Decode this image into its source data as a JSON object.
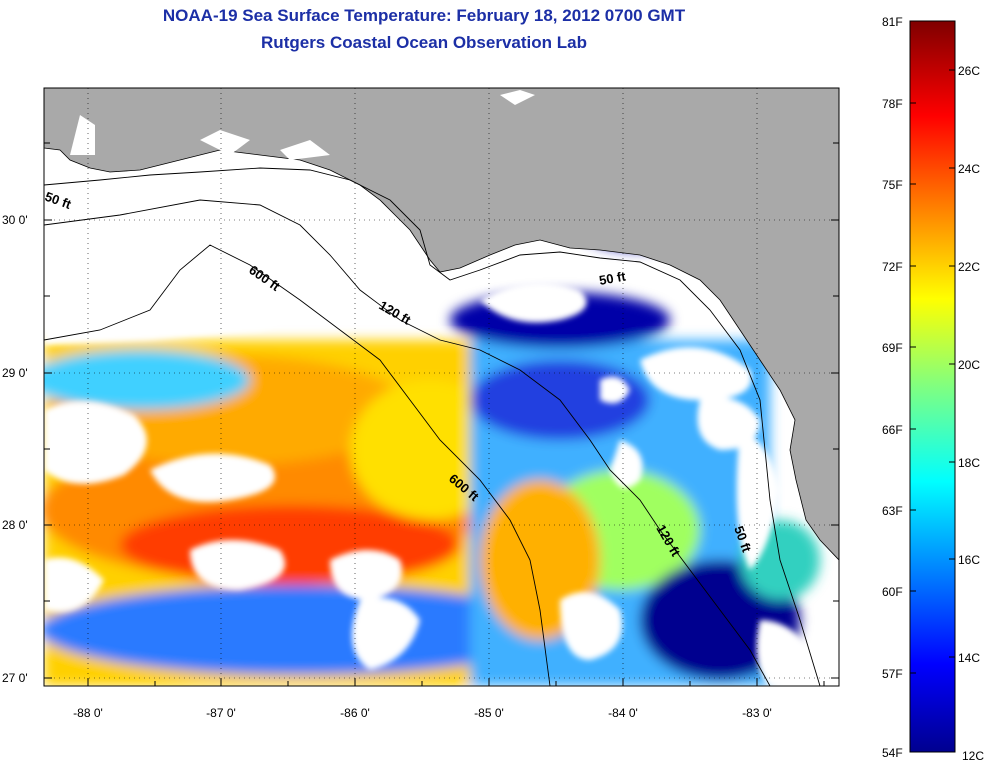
{
  "title": {
    "line1": "NOAA-19 Sea Surface Temperature:  February 18, 2012 0700 GMT",
    "line2": "Rutgers Coastal Ocean Observation Lab"
  },
  "map": {
    "lat_labels": [
      "30 0'",
      "29 0'",
      "28 0'",
      "27 0'"
    ],
    "lon_labels": [
      "-88 0'",
      "-87 0'",
      "-86 0'",
      "-85 0'",
      "-84 0'",
      "-83 0'"
    ],
    "contour_labels": [
      "50 ft",
      "600 ft",
      "120 ft",
      "50 ft",
      "600 ft",
      "120 ft",
      "50 ft"
    ]
  },
  "colorbar": {
    "f_labels": [
      "81F",
      "78F",
      "75F",
      "72F",
      "69F",
      "66F",
      "63F",
      "60F",
      "57F",
      "54F"
    ],
    "c_labels": [
      "26C",
      "24C",
      "22C",
      "20C",
      "18C",
      "16C",
      "14C",
      "12C"
    ],
    "colors": {
      "dark_red": "#7f0000",
      "red": "#ff0000",
      "orange": "#ff8000",
      "yellow": "#ffff00",
      "cyan": "#00ffff",
      "blue": "#0000ff",
      "dark_blue": "#00008f",
      "land": "#a9a9a9",
      "cloud": "#ffffff"
    }
  }
}
